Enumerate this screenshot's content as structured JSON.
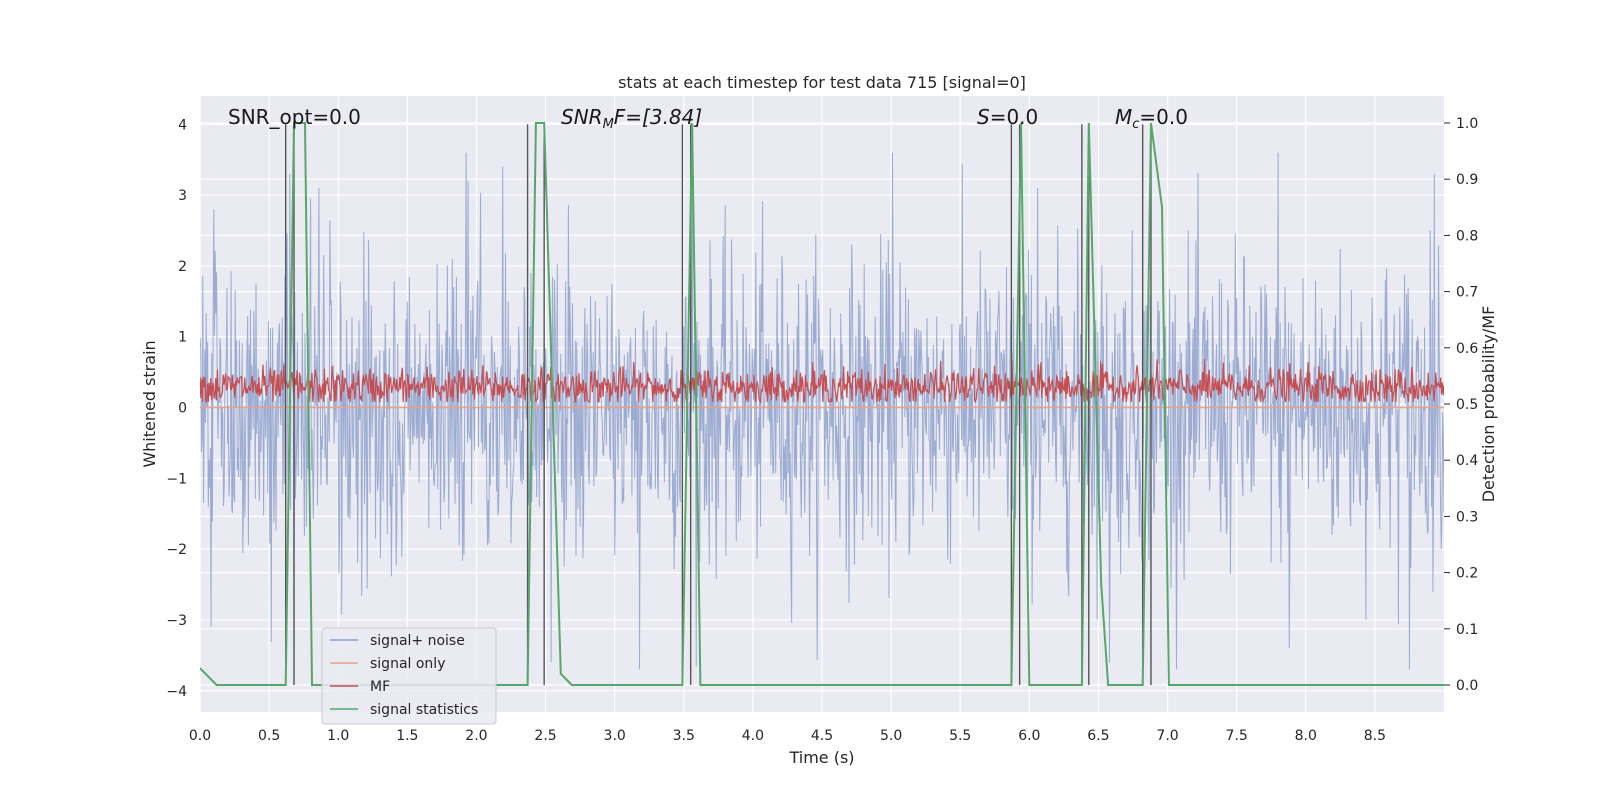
{
  "chart_data": {
    "type": "line",
    "title": "stats at each timestep for test data 715 [signal=0]",
    "xlabel": "Time (s)",
    "ylabel": "Whitened strain",
    "y2label": "Detection probability/MF",
    "xlim": [
      0,
      9.0
    ],
    "ylim": [
      -4.3,
      4.4
    ],
    "y2lim": [
      -0.048,
      1.048
    ],
    "x_ticks": [
      0.0,
      0.5,
      1.0,
      1.5,
      2.0,
      2.5,
      3.0,
      3.5,
      4.0,
      4.5,
      5.0,
      5.5,
      6.0,
      6.5,
      7.0,
      7.5,
      8.0,
      8.5
    ],
    "x_tick_labels": [
      "0.0",
      "0.5",
      "1.0",
      "1.5",
      "2.0",
      "2.5",
      "3.0",
      "3.5",
      "4.0",
      "4.5",
      "5.0",
      "5.5",
      "6.0",
      "6.5",
      "7.0",
      "7.5",
      "8.0",
      "8.5"
    ],
    "y_ticks": [
      4,
      3,
      2,
      1,
      0,
      -1,
      -2,
      -3,
      -4
    ],
    "y_tick_labels": [
      "4",
      "3",
      "2",
      "1",
      "0",
      "−1",
      "−2",
      "−3",
      "−4"
    ],
    "y2_ticks": [
      1.0,
      0.9,
      0.8,
      0.7,
      0.6,
      0.5,
      0.4,
      0.3,
      0.2,
      0.1,
      0.0
    ],
    "y2_tick_labels": [
      "1.0",
      "0.9",
      "0.8",
      "0.7",
      "0.6",
      "0.5",
      "0.4",
      "0.3",
      "0.2",
      "0.1",
      "0.0"
    ],
    "grid": true,
    "legend_position": "lower-left",
    "annotations": {
      "snr_opt": "SNR_opt=0.0",
      "snr_mf_main": "SNR",
      "snr_mf_sub": "M",
      "snr_mf_rest": "F=[3.84]",
      "s_main": "S",
      "s_rest": "=0.0",
      "mc_main": "M",
      "mc_sub": "c",
      "mc_rest": "=0.0"
    },
    "series": [
      {
        "name": "signal+ noise",
        "color": "#8da0cb",
        "axis": "left",
        "description_range": [
          -3.7,
          3.6
        ],
        "peaks": [
          [
            0.1,
            2.8
          ],
          [
            0.65,
            3.3
          ],
          [
            0.86,
            3.1
          ],
          [
            1.94,
            3.2
          ],
          [
            2.19,
            3.4
          ],
          [
            3.56,
            3.6
          ],
          [
            5.01,
            3.6
          ],
          [
            6.06,
            3.1
          ],
          [
            7.8,
            3.6
          ],
          [
            8.93,
            3.3
          ]
        ],
        "troughs": [
          [
            0.08,
            -3.1
          ],
          [
            0.68,
            -3.5
          ],
          [
            2.54,
            -3.6
          ],
          [
            3.18,
            -3.7
          ],
          [
            6.58,
            -3.6
          ],
          [
            7.88,
            -3.4
          ],
          [
            8.75,
            -3.7
          ]
        ]
      },
      {
        "name": "signal only",
        "color": "#e8a088",
        "axis": "left",
        "x": [
          0.0,
          9.0
        ],
        "y": [
          0.0,
          0.0
        ]
      },
      {
        "name": "MF",
        "color": "#c44e52",
        "axis": "right",
        "y_range": [
          0.504,
          0.58
        ],
        "mean": 0.53
      },
      {
        "name": "signal statistics",
        "color": "#55a868",
        "axis": "right",
        "x": [
          0.0,
          0.12,
          0.62,
          0.68,
          0.76,
          0.81,
          2.37,
          2.43,
          2.49,
          2.61,
          2.69,
          3.49,
          3.56,
          3.62,
          5.87,
          5.94,
          6.0,
          6.38,
          6.43,
          6.52,
          6.57,
          6.82,
          6.88,
          6.96,
          7.01,
          9.0
        ],
        "y": [
          0.03,
          0.0,
          0.0,
          1.0,
          1.0,
          0.0,
          0.0,
          1.0,
          1.0,
          0.02,
          0.0,
          0.0,
          1.0,
          0.0,
          0.0,
          1.0,
          0.0,
          0.0,
          1.0,
          0.18,
          0.0,
          0.0,
          1.0,
          0.85,
          0.0,
          0.0
        ]
      }
    ],
    "vertical_lines_x": [
      0.62,
      0.68,
      2.37,
      2.49,
      3.49,
      3.55,
      5.87,
      5.93,
      6.38,
      6.43,
      6.82,
      6.88
    ]
  }
}
